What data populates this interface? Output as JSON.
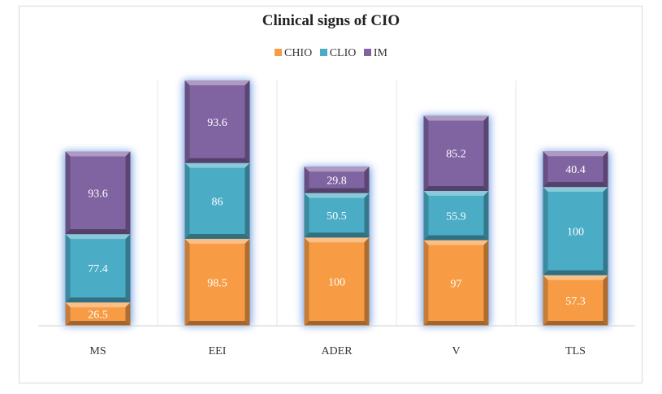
{
  "chart_data": {
    "type": "bar",
    "stacked": true,
    "title": "Clinical signs of CIO",
    "categories": [
      "MS",
      "EEI",
      "ADER",
      "V",
      "TLS"
    ],
    "series": [
      {
        "name": "CHIO",
        "values": [
          26.5,
          98.5,
          100,
          97,
          57.3
        ],
        "color": "#f79c45"
      },
      {
        "name": "CLIO",
        "values": [
          77.4,
          86,
          50.5,
          55.9,
          100
        ],
        "color": "#4bacc6"
      },
      {
        "name": "IM",
        "values": [
          93.6,
          93.6,
          29.8,
          85.2,
          40.4
        ],
        "color": "#8064a2"
      }
    ],
    "xlabel": "",
    "ylabel": "",
    "legend_position": "top",
    "grid": false
  }
}
